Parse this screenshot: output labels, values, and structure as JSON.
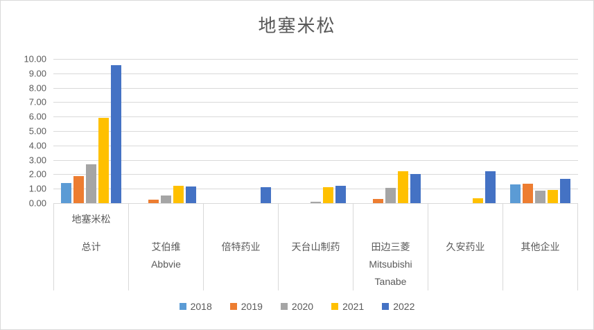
{
  "chart_data": {
    "type": "bar",
    "title": "地塞米松",
    "categories": [
      {
        "top": "地塞米松",
        "lines": [
          "总计"
        ]
      },
      {
        "lines": [
          "艾伯维",
          "Abbvie"
        ]
      },
      {
        "lines": [
          "倍特药业"
        ]
      },
      {
        "lines": [
          "天台山制药"
        ]
      },
      {
        "lines": [
          "田边三菱",
          "Mitsubishi",
          "Tanabe"
        ]
      },
      {
        "lines": [
          "久安药业"
        ]
      },
      {
        "lines": [
          "其他企业"
        ]
      }
    ],
    "series": [
      {
        "name": "2018",
        "color": "#5B9BD5",
        "values": [
          1.4,
          0,
          0,
          0,
          0,
          0,
          1.3
        ]
      },
      {
        "name": "2019",
        "color": "#ED7D31",
        "values": [
          1.9,
          0.25,
          0,
          0,
          0.3,
          0,
          1.35
        ]
      },
      {
        "name": "2020",
        "color": "#A5A5A5",
        "values": [
          2.7,
          0.55,
          0,
          0.1,
          1.05,
          0,
          0.85
        ]
      },
      {
        "name": "2021",
        "color": "#FFC000",
        "values": [
          5.9,
          1.2,
          0,
          1.1,
          2.2,
          0.35,
          0.9
        ]
      },
      {
        "name": "2022",
        "color": "#4472C4",
        "values": [
          9.55,
          1.15,
          1.1,
          1.2,
          2.0,
          2.2,
          1.7
        ]
      }
    ],
    "ylim": [
      0,
      10
    ],
    "ytick_labels": [
      "10.00",
      "9.00",
      "8.00",
      "7.00",
      "6.00",
      "5.00",
      "4.00",
      "3.00",
      "2.00",
      "1.00",
      "0.00"
    ],
    "grid": true,
    "legend_position": "bottom",
    "colors": {
      "gridline": "#D9D9D9",
      "axis_line": "#D9D9D9",
      "text": "#595959",
      "background": "#FFFFFF",
      "border": "#D9D9D9"
    }
  }
}
